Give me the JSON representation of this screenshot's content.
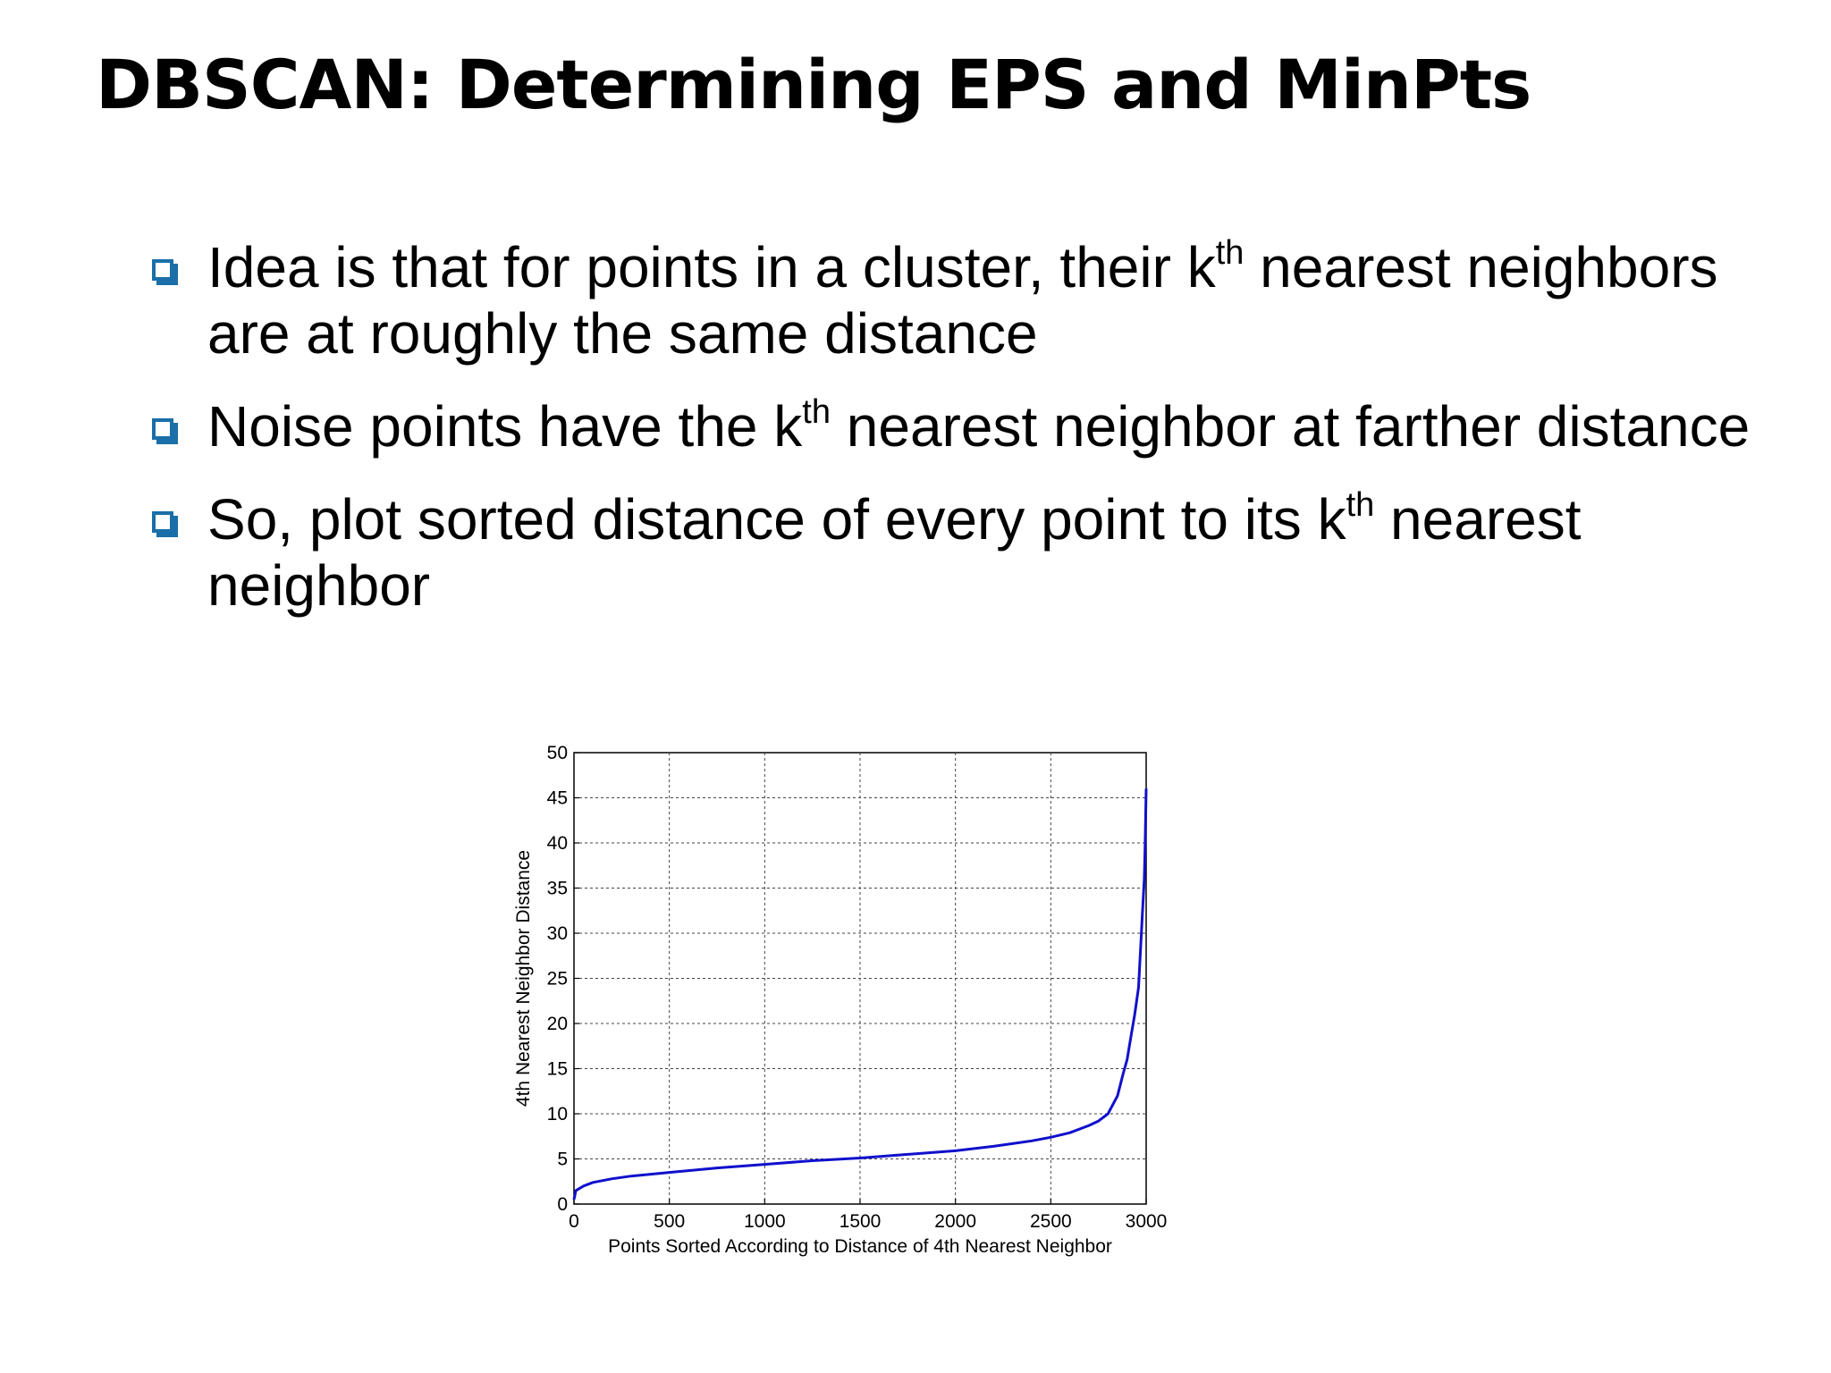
{
  "slide": {
    "title": "DBSCAN: Determining EPS and MinPts",
    "bullets": [
      {
        "before": "Idea is that for points in a cluster, their k",
        "sup": "th",
        "after": " nearest neighbors are at roughly the same distance"
      },
      {
        "before": "Noise points have the k",
        "sup": "th",
        "after": " nearest neighbor at farther distance"
      },
      {
        "before": "So, plot sorted distance of every point to its k",
        "sup": "th",
        "after": " nearest neighbor"
      }
    ]
  },
  "colors": {
    "bullet": "#1a6fa8",
    "line": "#1010cc"
  },
  "chart_data": {
    "type": "line",
    "title": "",
    "xlabel": "Points Sorted According to Distance of 4th Nearest Neighbor",
    "ylabel": "4th Nearest Neighbor Distance",
    "xlim": [
      0,
      3000
    ],
    "ylim": [
      0,
      50
    ],
    "xticks": [
      "0",
      "500",
      "1000",
      "1500",
      "2000",
      "2500",
      "3000"
    ],
    "yticks": [
      "0",
      "5",
      "10",
      "15",
      "20",
      "25",
      "30",
      "35",
      "40",
      "45",
      "50"
    ],
    "grid": true,
    "series": [
      {
        "x": [
          0,
          10,
          50,
          100,
          200,
          300,
          500,
          750,
          1000,
          1250,
          1500,
          1750,
          2000,
          2200,
          2400,
          2500,
          2600,
          2700,
          2750,
          2800,
          2850,
          2880,
          2900,
          2920,
          2940,
          2960,
          2970,
          2980,
          2990,
          2995,
          3000
        ],
        "y": [
          0.5,
          1.5,
          2.0,
          2.4,
          2.8,
          3.1,
          3.5,
          4.0,
          4.4,
          4.8,
          5.1,
          5.5,
          5.9,
          6.4,
          7.0,
          7.4,
          7.9,
          8.7,
          9.2,
          10.0,
          12.0,
          14.5,
          16.0,
          18.5,
          21.0,
          24.0,
          28.0,
          32.0,
          36.0,
          40.0,
          46.0
        ]
      }
    ]
  }
}
